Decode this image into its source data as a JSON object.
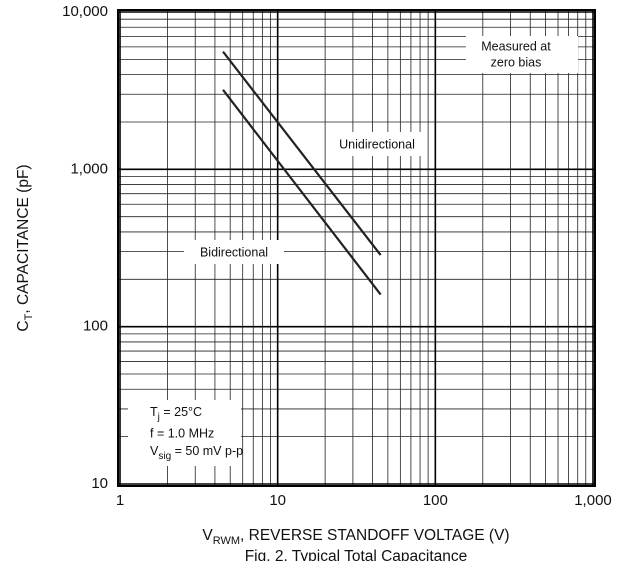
{
  "chart_data": {
    "type": "line",
    "log_x": true,
    "log_y": true,
    "grid": true,
    "minor_grid": true,
    "x": [
      4.5,
      45
    ],
    "series": [
      {
        "name": "Unidirectional",
        "color": "#222222",
        "values": [
          5600,
          285
        ]
      },
      {
        "name": "Bidirectional",
        "color": "#222222",
        "values": [
          3200,
          160
        ]
      }
    ],
    "xlim": [
      1,
      1000
    ],
    "ylim": [
      10,
      10000
    ],
    "xticks": [
      1,
      10,
      100,
      {
        "value": 1000,
        "label": "1,000"
      }
    ],
    "yticks": [
      10,
      100,
      {
        "value": 1000,
        "label": "1,000"
      },
      {
        "value": 10000,
        "label": "10,000"
      }
    ],
    "xlabel": [
      "V",
      "RWM",
      ", REVERSE STANDOFF VOLTAGE (V)"
    ],
    "ylabel": [
      "C",
      "T",
      ", CAPACITANCE (pF)"
    ],
    "note": [
      "Measured at",
      "zero bias"
    ],
    "conditions": [
      [
        "T",
        "j",
        " = 25°C"
      ],
      [
        "f = 1.0 MHz"
      ],
      [
        "V",
        "sig",
        " = 50 mV p-p"
      ]
    ],
    "caption": "Fig. 2. Typical Total Capacitance"
  }
}
